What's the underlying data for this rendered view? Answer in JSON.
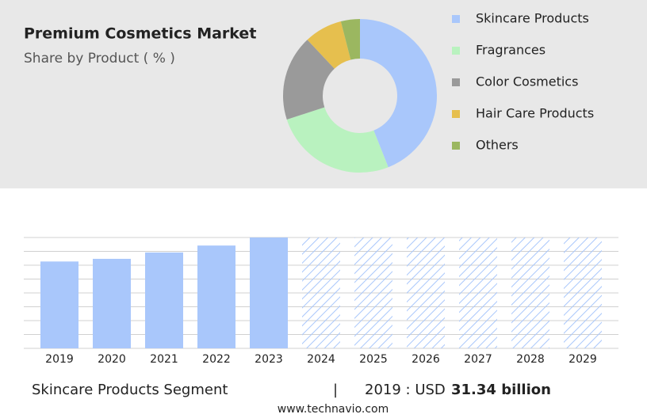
{
  "chart_data": [
    {
      "type": "pie",
      "title": "Premium Cosmetics Market",
      "subtitle": "Share by Product ( % )",
      "categories": [
        "Skincare Products",
        "Fragrances",
        "Color Cosmetics",
        "Hair Care Products",
        "Others"
      ],
      "values": [
        44,
        26,
        18,
        8,
        4
      ],
      "colors": [
        "#a9c7fb",
        "#b9f2bf",
        "#9a9a9a",
        "#e6bf4e",
        "#9bb760"
      ],
      "donut": true,
      "legend": "right"
    },
    {
      "type": "bar",
      "categories": [
        "2019",
        "2020",
        "2021",
        "2022",
        "2023",
        "2024",
        "2025",
        "2026",
        "2027",
        "2028",
        "2029"
      ],
      "values": [
        31.34,
        32.3,
        34.6,
        37.1,
        40,
        null,
        null,
        null,
        null,
        null,
        null
      ],
      "color": "#a9c7fb",
      "ylim": [
        0,
        40
      ],
      "yticks": [
        0,
        5,
        10,
        15,
        20,
        25,
        30,
        35,
        40
      ],
      "grid": true
    }
  ],
  "footer": {
    "segment": "Skincare Products Segment",
    "separator": "|",
    "year_label": "2019 : USD",
    "value": "31.34 billion",
    "source": "www.technavio.com"
  }
}
